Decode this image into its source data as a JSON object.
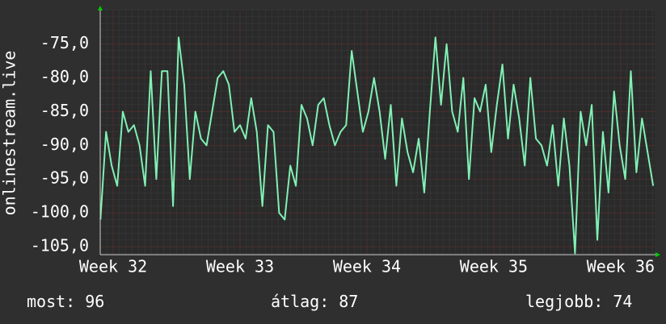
{
  "chart_data": {
    "type": "line",
    "y_label": "onlinestream.live",
    "xlim": [
      31.898,
      36.268
    ],
    "xticks": [
      {
        "value": 32,
        "label": "Week 32"
      },
      {
        "value": 33,
        "label": "Week 33"
      },
      {
        "value": 34,
        "label": "Week 34"
      },
      {
        "value": 35,
        "label": "Week 35"
      },
      {
        "value": 36,
        "label": "Week 36"
      }
    ],
    "ylim": [
      -106.2,
      -69.9
    ],
    "yticks": [
      {
        "value": -75,
        "label": "-75,0"
      },
      {
        "value": -80,
        "label": "-80,0"
      },
      {
        "value": -85,
        "label": "-85,0"
      },
      {
        "value": -90,
        "label": "-90,0"
      },
      {
        "value": -95,
        "label": "-95,0"
      },
      {
        "value": -100,
        "label": "-100,0"
      },
      {
        "value": -105,
        "label": "-105,0"
      }
    ],
    "grid": true,
    "x": [
      31.9,
      31.944,
      31.988,
      32.032,
      32.076,
      32.12,
      32.164,
      32.208,
      32.252,
      32.296,
      32.34,
      32.384,
      32.428,
      32.472,
      32.516,
      32.56,
      32.604,
      32.648,
      32.692,
      32.736,
      32.78,
      32.824,
      32.868,
      32.912,
      32.956,
      33.0,
      33.044,
      33.088,
      33.132,
      33.176,
      33.22,
      33.264,
      33.308,
      33.352,
      33.396,
      33.44,
      33.484,
      33.528,
      33.572,
      33.616,
      33.66,
      33.704,
      33.748,
      33.792,
      33.836,
      33.88,
      33.924,
      33.968,
      34.012,
      34.056,
      34.1,
      34.144,
      34.188,
      34.232,
      34.276,
      34.32,
      34.364,
      34.408,
      34.452,
      34.496,
      34.54,
      34.584,
      34.628,
      34.672,
      34.716,
      34.76,
      34.804,
      34.848,
      34.892,
      34.936,
      34.98,
      35.024,
      35.068,
      35.112,
      35.156,
      35.2,
      35.244,
      35.288,
      35.332,
      35.376,
      35.42,
      35.464,
      35.508,
      35.552,
      35.596,
      35.64,
      35.684,
      35.728,
      35.772,
      35.816,
      35.86,
      35.904,
      35.948,
      35.992,
      36.036,
      36.08,
      36.124,
      36.168,
      36.212,
      36.256
    ],
    "series": [
      {
        "color": "#80f0b4",
        "values": [
          -101,
          -88,
          -93,
          -96,
          -85,
          -88,
          -87,
          -90,
          -96,
          -79,
          -95,
          -79,
          -79,
          -99,
          -74,
          -81,
          -95,
          -85,
          -89,
          -90,
          -85,
          -80,
          -79,
          -81,
          -88,
          -87,
          -89,
          -83,
          -88,
          -99,
          -87,
          -88,
          -100,
          -101,
          -93,
          -96,
          -84,
          -86,
          -90,
          -84,
          -83,
          -87,
          -90,
          -88,
          -87,
          -76,
          -82,
          -88,
          -85,
          -80,
          -85,
          -92,
          -84,
          -96,
          -86,
          -91,
          -94,
          -89,
          -97,
          -85,
          -74,
          -84,
          -75,
          -85,
          -88,
          -80,
          -95,
          -83,
          -85,
          -81,
          -91,
          -84,
          -78,
          -89,
          -81,
          -86,
          -93,
          -80,
          -89,
          -90,
          -93,
          -87,
          -96,
          -86,
          -93,
          -106,
          -85,
          -90,
          -84,
          -104,
          -88,
          -97,
          -82,
          -90,
          -95,
          -79,
          -94,
          -86,
          -91,
          -96
        ]
      }
    ],
    "stats": [
      {
        "label": "most:",
        "value": 96
      },
      {
        "label": "átlag:",
        "value": 87
      },
      {
        "label": "legjobb:",
        "value": 74
      }
    ]
  }
}
